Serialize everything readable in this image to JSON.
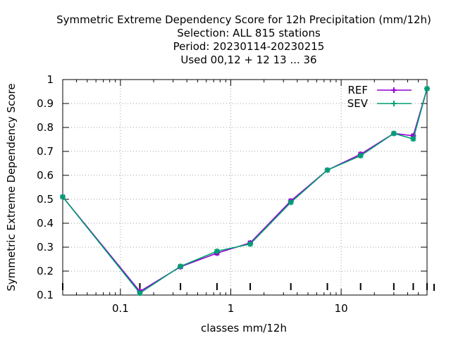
{
  "chart_data": {
    "type": "line",
    "title_lines": [
      "Symmetric Extreme Dependency Score  for 12h Precipitation (mm/12h)",
      "Selection: ALL    815 stations",
      "Period: 20230114-20230215",
      "Used  00,12  + 12 13 ... 36"
    ],
    "xlabel": "classes mm/12h",
    "ylabel": "Symmetric Extreme Dependency Score",
    "x_scale": "log",
    "ylim": [
      0.1,
      1.0
    ],
    "y_ticks": [
      "0.1",
      "0.2",
      "0.3",
      "0.4",
      "0.5",
      "0.6",
      "0.7",
      "0.8",
      "0.9",
      "1"
    ],
    "x_ticks": [
      "0.1",
      "1",
      "10"
    ],
    "grid": true,
    "legend_position": "top-right",
    "x": [
      0.03,
      0.15,
      0.35,
      0.75,
      1.5,
      3.5,
      7.5,
      15,
      30,
      45,
      60
    ],
    "series": [
      {
        "name": "REF",
        "color": "#9400d3",
        "values": [
          0.51,
          0.115,
          0.218,
          0.275,
          0.318,
          0.493,
          0.622,
          0.688,
          0.775,
          0.765,
          0.962
        ]
      },
      {
        "name": "SEV",
        "color": "#009e73",
        "values": [
          0.51,
          0.108,
          0.22,
          0.283,
          0.313,
          0.487,
          0.622,
          0.682,
          0.775,
          0.752,
          0.962
        ]
      }
    ]
  }
}
